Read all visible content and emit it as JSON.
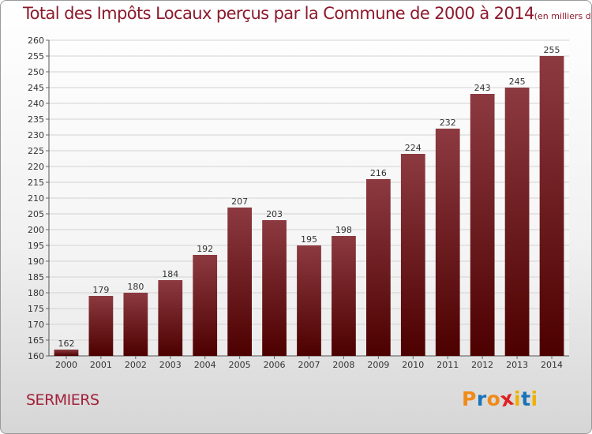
{
  "header": {
    "title": "Total des Impôts Locaux perçus par la Commune de 2000 à 2014",
    "unit": "(en milliers d'€)"
  },
  "footer": {
    "commune": "SERMIERS",
    "logo": [
      "P",
      "r",
      "o",
      "x",
      "i",
      "t",
      "i"
    ]
  },
  "colors": {
    "bar_top": "#8c3a40",
    "bar_bottom": "#4d0000",
    "title": "#8c1a2c",
    "commune": "#a3203a",
    "logo": [
      "#f08a18",
      "#1a73b8",
      "#f08a18",
      "#e02020",
      "#f0b000",
      "#1a73b8",
      "#f0b000"
    ]
  },
  "chart_data": {
    "type": "bar",
    "title": "Total des Impôts Locaux perçus par la Commune de 2000 à 2014",
    "subtitle": "(en milliers d'€)",
    "categories": [
      "2000",
      "2001",
      "2002",
      "2003",
      "2004",
      "2005",
      "2006",
      "2007",
      "2008",
      "2009",
      "2010",
      "2011",
      "2012",
      "2013",
      "2014"
    ],
    "values": [
      162,
      179,
      180,
      184,
      192,
      207,
      203,
      195,
      198,
      216,
      224,
      232,
      243,
      245,
      255
    ],
    "xlabel": "",
    "ylabel": "",
    "ylim": [
      160,
      260
    ],
    "yticks": [
      160,
      165,
      170,
      175,
      180,
      185,
      190,
      195,
      200,
      205,
      210,
      215,
      220,
      225,
      230,
      235,
      240,
      245,
      250,
      255,
      260
    ],
    "grid": true,
    "data_labels": true
  }
}
